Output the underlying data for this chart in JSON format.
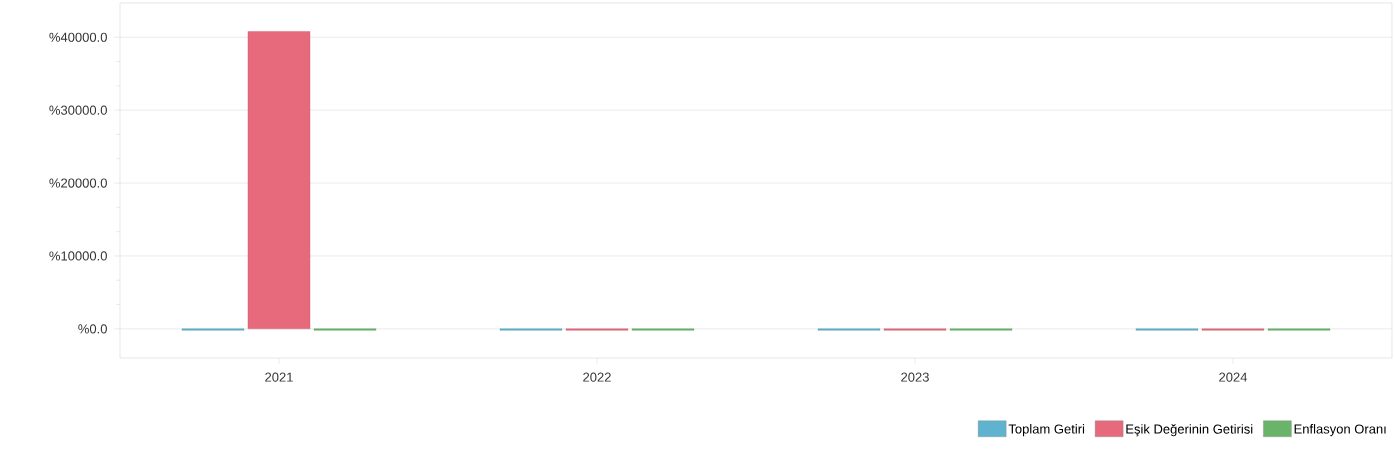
{
  "chart_data": {
    "type": "bar",
    "categories": [
      "2021",
      "2022",
      "2023",
      "2024"
    ],
    "series": [
      {
        "name": "Toplam Getiri",
        "color": "#5fb3ce",
        "values": [
          -200,
          -200,
          -200,
          -200
        ]
      },
      {
        "name": "Eşik Değerinin Getirisi",
        "color": "#e66a7c",
        "values": [
          40800,
          -200,
          -200,
          -200
        ]
      },
      {
        "name": "Enflasyon Oranı",
        "color": "#6ab46a",
        "values": [
          -200,
          -200,
          -200,
          -200
        ]
      }
    ],
    "ylim": [
      -4000,
      44700
    ],
    "yticks": [
      {
        "value": 0,
        "label": "%0.0"
      },
      {
        "value": 10000,
        "label": "%10000.0"
      },
      {
        "value": 20000,
        "label": "%20000.0"
      },
      {
        "value": 30000,
        "label": "%30000.0"
      },
      {
        "value": 40000,
        "label": "%40000.0"
      }
    ],
    "grid": "y",
    "legend": "bottom right"
  }
}
